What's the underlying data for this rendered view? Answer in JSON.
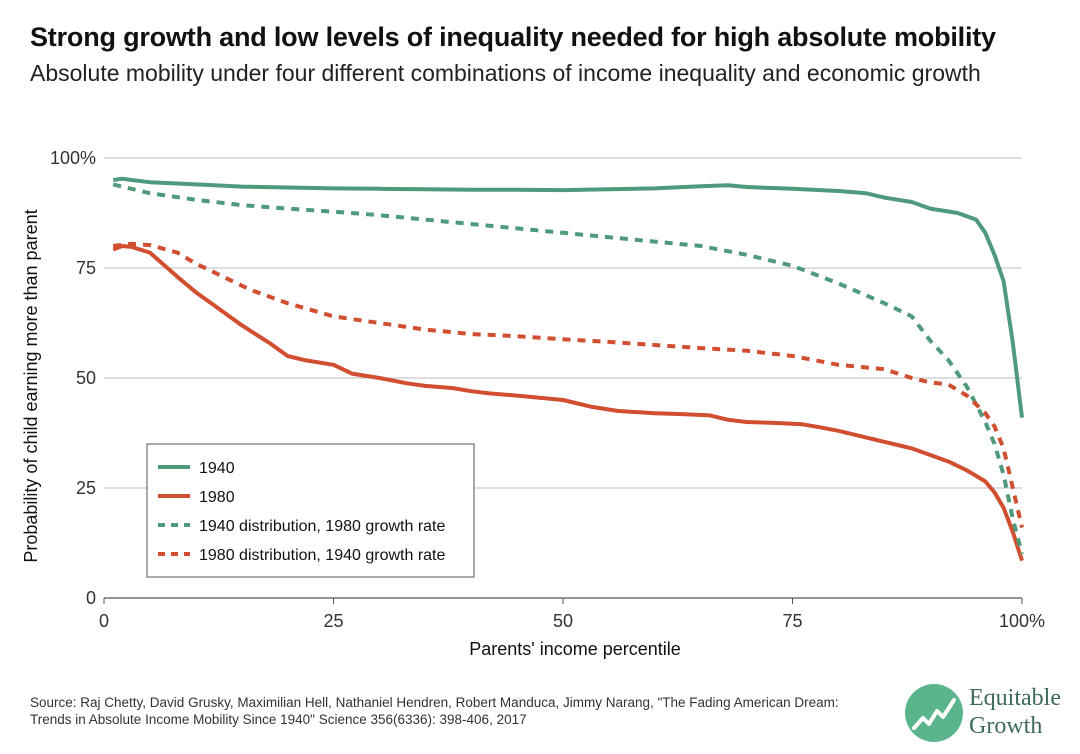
{
  "title": "Strong growth and low levels of inequality needed for high absolute mobility",
  "subtitle": "Absolute mobility under four different combinations of income inequality and economic growth",
  "source": "Source: Raj Chetty, David Grusky, Maximilian Hell, Nathaniel Hendren, Robert Manduca, Jimmy Narang, \"The Fading American Dream: Trends in Absolute Income Mobility Since 1940\" Science 356(6336): 398-406, 2017",
  "logo": {
    "line1": "Equitable",
    "line2": "Growth",
    "color": "#5ab58d"
  },
  "chart_data": {
    "type": "line",
    "xlabel": "Parents' income percentile",
    "ylabel": "Probability of child earning more than parent",
    "xlim": [
      0,
      100
    ],
    "ylim": [
      0,
      100
    ],
    "x_ticks": [
      "0",
      "25",
      "50",
      "75",
      "100%"
    ],
    "y_ticks": [
      "0",
      "25",
      "50",
      "75",
      "100%"
    ],
    "grid": "horizontal",
    "legend_position": "bottom-left",
    "series": [
      {
        "name": "1940",
        "color": "#4e9a7a",
        "style": "solid",
        "x": [
          1,
          2,
          3,
          5,
          10,
          15,
          20,
          25,
          30,
          35,
          40,
          45,
          50,
          55,
          60,
          65,
          68,
          70,
          75,
          80,
          83,
          85,
          88,
          90,
          93,
          95,
          96,
          97,
          98,
          99,
          100
        ],
        "y": [
          95,
          95.3,
          95,
          94.5,
          94,
          93.5,
          93.3,
          93.1,
          93,
          92.9,
          92.8,
          92.8,
          92.7,
          92.9,
          93.1,
          93.6,
          93.8,
          93.4,
          93,
          92.5,
          92,
          91,
          90,
          88.5,
          87.5,
          86,
          83,
          78,
          72,
          58,
          41
        ]
      },
      {
        "name": "1980",
        "color": "#d24e30",
        "style": "solid",
        "x": [
          1,
          2,
          3,
          5,
          8,
          10,
          12,
          15,
          18,
          20,
          22,
          25,
          27,
          30,
          33,
          35,
          38,
          40,
          42,
          45,
          47,
          50,
          53,
          56,
          60,
          63,
          66,
          68,
          70,
          73,
          76,
          78,
          80,
          83,
          86,
          88,
          90,
          92,
          94,
          96,
          97,
          98,
          99,
          100
        ],
        "y": [
          79.2,
          80,
          79.8,
          78.5,
          73,
          69.5,
          66.5,
          62,
          58,
          55,
          54,
          53,
          51,
          50,
          48.8,
          48.2,
          47.7,
          47,
          46.5,
          46,
          45.6,
          45,
          43.5,
          42.5,
          42,
          41.8,
          41.5,
          40.5,
          40,
          39.8,
          39.5,
          38.8,
          38,
          36.5,
          35,
          34,
          32.5,
          31,
          29,
          26.5,
          24,
          20.5,
          15,
          8.5
        ]
      },
      {
        "name": "1940 distribution, 1980 growth rate",
        "color": "#4e9a7a",
        "style": "dashed",
        "x": [
          1,
          5,
          10,
          15,
          20,
          25,
          30,
          35,
          40,
          45,
          50,
          55,
          60,
          65,
          70,
          75,
          80,
          85,
          88,
          90,
          92,
          94,
          96,
          97,
          98,
          99,
          100
        ],
        "y": [
          94,
          92,
          90.5,
          89.3,
          88.5,
          87.8,
          87,
          86,
          85,
          84,
          83,
          82,
          81,
          80,
          78,
          75.5,
          71.5,
          67,
          64,
          58.5,
          54,
          48,
          40,
          35,
          28,
          18,
          10
        ]
      },
      {
        "name": "1980 distribution, 1940 growth rate",
        "color": "#d24e30",
        "style": "dashed",
        "x": [
          1,
          3,
          5,
          8,
          10,
          13,
          16,
          20,
          25,
          30,
          35,
          40,
          45,
          50,
          55,
          60,
          65,
          70,
          75,
          80,
          85,
          88,
          90,
          92,
          94,
          96,
          97,
          98,
          99,
          100
        ],
        "y": [
          80,
          80.5,
          80.2,
          78.5,
          76,
          73,
          70,
          67,
          64,
          62.5,
          61,
          60,
          59.5,
          58.8,
          58.2,
          57.5,
          56.8,
          56.2,
          55,
          53,
          52,
          50,
          49,
          48.5,
          46,
          42,
          39,
          34,
          25,
          16
        ]
      }
    ]
  }
}
